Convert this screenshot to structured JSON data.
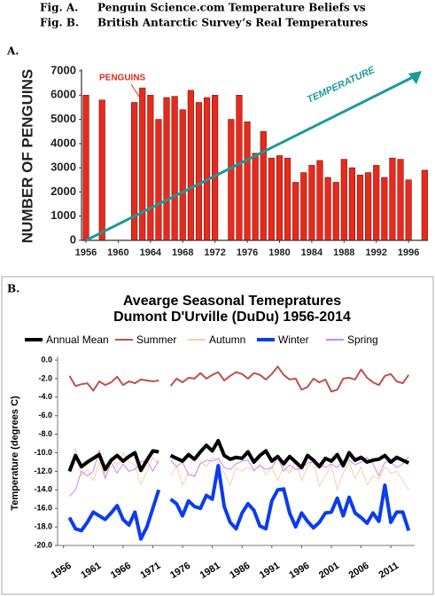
{
  "header": [
    [
      "Fig. A.",
      "Penguin Science.com Temperature Beliefs vs"
    ],
    [
      "Fig. B.",
      "British Antarctic Survey’s Real Temperatures"
    ]
  ],
  "chart_data": [
    {
      "type": "bar",
      "label": "A.",
      "ylabel": "NUMBER OF PENGUINS",
      "annotations": [
        "PENGUINS",
        "TEMPERATURE"
      ],
      "x": [
        1956,
        1958,
        1962,
        1963,
        1964,
        1965,
        1966,
        1967,
        1968,
        1969,
        1970,
        1971,
        1972,
        1974,
        1975,
        1976,
        1977,
        1978,
        1979,
        1980,
        1981,
        1982,
        1983,
        1984,
        1985,
        1986,
        1987,
        1988,
        1989,
        1990,
        1991,
        1992,
        1993,
        1994,
        1995,
        1996,
        1998
      ],
      "values": [
        6000,
        5800,
        5700,
        6300,
        6000,
        5000,
        5900,
        5950,
        5400,
        6200,
        5700,
        5900,
        6000,
        5000,
        6000,
        4900,
        3600,
        4500,
        3400,
        3500,
        3400,
        2400,
        2800,
        3100,
        3300,
        2600,
        2400,
        3350,
        3000,
        2700,
        2800,
        3100,
        2600,
        3400,
        3350,
        2500,
        2900
      ],
      "color": "#e52b1d",
      "xlim": [
        1955.45,
        1998.4
      ],
      "xticks": [
        1956,
        1960,
        1964,
        1968,
        1972,
        1976,
        1980,
        1984,
        1988,
        1992,
        1996
      ],
      "ylim": [
        0,
        7000
      ],
      "yticks": [
        0,
        1000,
        2000,
        3000,
        4000,
        5000,
        6000,
        7000
      ]
    },
    {
      "type": "line",
      "label": "B.",
      "title": [
        "Avearge Seasonal Temepratures",
        "Dumont D'Urville (DuDu) 1956-2014"
      ],
      "ylabel": "Temperature (degrees C)",
      "x": [
        1957,
        1958,
        1959,
        1960,
        1961,
        1962,
        1963,
        1964,
        1965,
        1966,
        1967,
        1968,
        1969,
        1970,
        1971,
        1972,
        1973,
        1974,
        1975,
        1976,
        1977,
        1978,
        1979,
        1980,
        1981,
        1982,
        1983,
        1984,
        1985,
        1986,
        1987,
        1988,
        1989,
        1990,
        1991,
        1992,
        1993,
        1994,
        1995,
        1996,
        1997,
        1998,
        1999,
        2000,
        2001,
        2002,
        2003,
        2004,
        2005,
        2006,
        2007,
        2008,
        2009,
        2010,
        2011,
        2012,
        2013,
        2014
      ],
      "series": [
        {
          "name": "Annual Mean",
          "color": "#000000",
          "width": 4,
          "values": [
            -12.0,
            -10.3,
            -11.5,
            -11.0,
            -10.6,
            -10.2,
            -11.8,
            -10.8,
            -10.3,
            -10.9,
            -10.4,
            -10.0,
            -11.9,
            -10.8,
            -9.8,
            -9.9,
            null,
            -10.3,
            -10.6,
            -10.9,
            -10.2,
            -10.7,
            -9.9,
            -9.2,
            -9.8,
            -8.7,
            -10.3,
            -10.7,
            -10.5,
            -10.6,
            -9.9,
            -11.0,
            -10.3,
            -9.8,
            -10.9,
            -10.4,
            -11.2,
            -10.4,
            -11.0,
            -11.6,
            -10.3,
            -10.8,
            -11.5,
            -10.6,
            -10.9,
            -10.2,
            -11.4,
            -10.0,
            -10.8,
            -10.5,
            -11.0,
            -10.8,
            -10.7,
            -10.3,
            -11.0,
            -10.5,
            -10.8,
            -11.1
          ]
        },
        {
          "name": "Summer",
          "color": "#c0504d",
          "width": 2,
          "values": [
            -1.7,
            -2.8,
            -2.6,
            -2.5,
            -3.3,
            -2.3,
            -2.7,
            -2.4,
            -1.8,
            -2.7,
            -2.3,
            -2.5,
            -2.1,
            -2.2,
            -2.3,
            -2.2,
            null,
            -2.8,
            -2.0,
            -2.4,
            -1.9,
            -2.0,
            -1.4,
            -2.0,
            -1.6,
            -1.3,
            -2.2,
            -1.7,
            -1.3,
            -1.5,
            -2.0,
            -1.4,
            -1.6,
            -2.1,
            -1.5,
            -0.7,
            -1.6,
            -2.1,
            -2.0,
            -3.2,
            -2.9,
            -2.0,
            -2.4,
            -2.1,
            -3.4,
            -3.2,
            -2.0,
            -1.9,
            -2.1,
            -1.0,
            -1.9,
            -2.4,
            -2.7,
            -1.7,
            -1.5,
            -2.3,
            -2.5,
            -1.6
          ]
        },
        {
          "name": "Autumn",
          "color": "#f9cfa6",
          "width": 1,
          "values": [
            -12.2,
            -9.5,
            -12.5,
            -11.8,
            -13.0,
            -11.0,
            -12.8,
            -10.5,
            -11.5,
            -10.0,
            -11.0,
            -11.3,
            -13.4,
            -12.0,
            -10.5,
            -11.2,
            null,
            -12.5,
            -11.4,
            -13.5,
            -12.0,
            -12.7,
            -10.9,
            -11.5,
            -10.5,
            -11.0,
            -12.2,
            -13.5,
            -11.6,
            -12.0,
            -11.5,
            -12.0,
            -11.2,
            -12.4,
            -11.6,
            -13.0,
            -11.5,
            -12.2,
            -10.9,
            -13.0,
            -11.5,
            -10.8,
            -13.6,
            -12.5,
            -11.3,
            -14.0,
            -12.2,
            -11.0,
            -12.8,
            -11.5,
            -13.5,
            -12.5,
            -12.8,
            -11.5,
            -12.2,
            -12.0,
            -13.0,
            -14.0
          ]
        },
        {
          "name": "Winter",
          "color": "#0a3cf0",
          "width": 4,
          "values": [
            -17.0,
            -18.2,
            -18.4,
            -17.5,
            -16.4,
            -16.8,
            -17.2,
            -16.5,
            -15.7,
            -17.2,
            -17.8,
            -16.4,
            -19.3,
            -18.0,
            -16.0,
            -14.0,
            null,
            -15.0,
            -15.5,
            -16.8,
            -15.2,
            -15.8,
            -16.0,
            -14.6,
            -15.0,
            -11.4,
            -15.8,
            -17.5,
            -18.2,
            -16.5,
            -15.5,
            -16.2,
            -17.9,
            -18.2,
            -15.2,
            -14.0,
            -13.9,
            -16.5,
            -18.0,
            -16.5,
            -17.4,
            -18.1,
            -17.5,
            -16.5,
            -16.4,
            -14.9,
            -16.8,
            -14.8,
            -16.5,
            -17.0,
            -17.6,
            -16.5,
            -17.4,
            -13.5,
            -17.5,
            -16.4,
            -16.4,
            -18.4
          ]
        },
        {
          "name": "Spring",
          "color": "#cc88ee",
          "width": 1,
          "values": [
            -14.7,
            -14.0,
            -12.0,
            -12.5,
            -12.0,
            -9.7,
            -12.8,
            -11.0,
            -12.2,
            -11.2,
            -12.0,
            -11.8,
            -11.0,
            -10.8,
            -12.0,
            -10.8,
            null,
            -10.8,
            -11.5,
            -11.0,
            -12.4,
            -12.5,
            -11.2,
            -10.8,
            -10.9,
            -10.6,
            -11.6,
            -11.8,
            -11.2,
            -10.9,
            -10.8,
            -11.9,
            -11.4,
            -11.8,
            -11.6,
            -10.5,
            -12.0,
            -11.3,
            -11.8,
            -11.7,
            -11.1,
            -11.0,
            -11.2,
            -11.6,
            -11.2,
            -11.6,
            -10.8,
            -10.8,
            -11.3,
            -11.0,
            -10.5,
            -11.2,
            -12.5,
            -11.0,
            -11.0,
            -11.6,
            -11.2,
            -10.4
          ]
        }
      ],
      "xlim": [
        1955,
        2015
      ],
      "xticks": [
        1956,
        1961,
        1966,
        1971,
        1976,
        1981,
        1986,
        1991,
        1996,
        2001,
        2006,
        2011
      ],
      "ylim": [
        -20,
        0
      ],
      "yticks": [
        {
          "value": 0,
          "label": "0.0"
        },
        {
          "value": -2,
          "label": "-2.0"
        },
        {
          "value": -4,
          "label": "-4.0"
        },
        {
          "value": -6,
          "label": "-6.0"
        },
        {
          "value": -8,
          "label": "-8.0"
        },
        {
          "value": -10,
          "label": "-10.0"
        },
        {
          "value": -12,
          "label": "-12.0"
        },
        {
          "value": -14,
          "label": "-14.0"
        },
        {
          "value": -16,
          "label": "-16.0"
        },
        {
          "value": -18,
          "label": "-18.0"
        },
        {
          "value": -20,
          "label": "-20.0"
        }
      ]
    }
  ]
}
